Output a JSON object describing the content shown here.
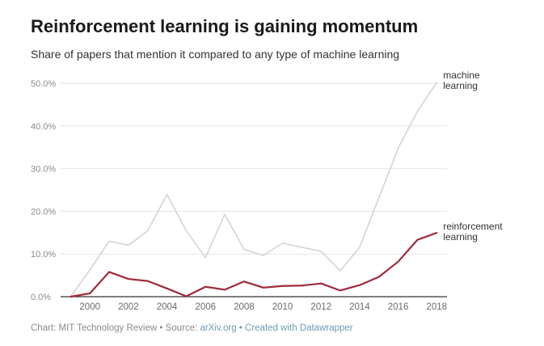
{
  "header": {
    "title": "Reinforcement learning is gaining momentum",
    "subtitle": "Share of papers that mention it compared to any type of machine learning"
  },
  "footer": {
    "chart_prefix": "Chart: ",
    "chart_credit": "MIT Technology Review",
    "sep1": " • ",
    "source_prefix": "Source: ",
    "source": "arXiv.org",
    "sep2": " • ",
    "created": "Created with Datawrapper"
  },
  "colors": {
    "machine_learning": "#d4d4d4",
    "reinforcement_learning": "#9e2a3a",
    "gridline": "#e6e6e6",
    "axis": "#333333"
  },
  "chart_data": {
    "type": "line",
    "title": "Reinforcement learning is gaining momentum",
    "subtitle": "Share of papers that mention it compared to any type of machine learning",
    "xlabel": "",
    "ylabel": "",
    "x": [
      1999,
      2000,
      2001,
      2002,
      2003,
      2004,
      2005,
      2006,
      2007,
      2008,
      2009,
      2010,
      2011,
      2012,
      2013,
      2014,
      2015,
      2016,
      2017,
      2018
    ],
    "xlim": [
      1998.9,
      2018.2
    ],
    "ylim": [
      0,
      52
    ],
    "x_ticks": [
      2000,
      2002,
      2004,
      2006,
      2008,
      2010,
      2012,
      2014,
      2016,
      2018
    ],
    "x_tick_labels": [
      "2000",
      "2002",
      "2004",
      "2006",
      "2008",
      "2010",
      "2012",
      "2014",
      "2016",
      "2018"
    ],
    "y_ticks": [
      0,
      10,
      20,
      30,
      40,
      50
    ],
    "y_tick_labels": [
      "0.0%",
      "10.0%",
      "20.0%",
      "30.0%",
      "40.0%",
      "50.0%"
    ],
    "grid": true,
    "series": [
      {
        "name": "machine learning",
        "label_lines": [
          "machine",
          "learning"
        ],
        "values": [
          0,
          6.5,
          13.5,
          12.5,
          16,
          24.8,
          16,
          9.5,
          20,
          11.5,
          10,
          13,
          12,
          11,
          6.3,
          12,
          24,
          36,
          45,
          52
        ]
      },
      {
        "name": "reinforcement learning",
        "label_lines": [
          "reinforcement",
          "learning"
        ],
        "values": [
          0,
          0.8,
          6,
          4.3,
          3.8,
          2,
          0.1,
          2.4,
          1.7,
          3.7,
          2.2,
          2.6,
          2.7,
          3.2,
          1.5,
          2.8,
          4.8,
          8.5,
          13.8,
          15.5
        ]
      }
    ]
  }
}
